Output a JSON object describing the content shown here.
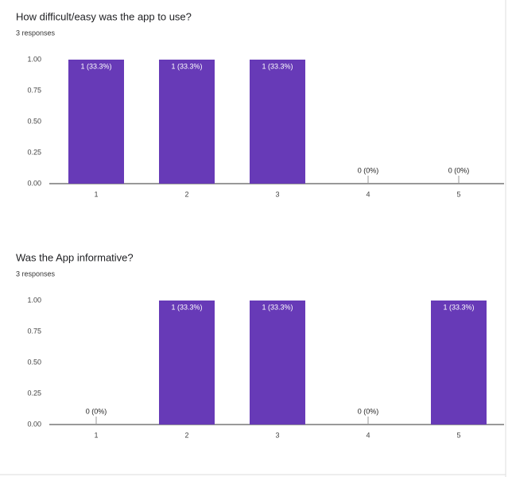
{
  "chart_data": [
    {
      "type": "bar",
      "title": "How difficult/easy was the app to use?",
      "subtitle": "3 responses",
      "categories": [
        "1",
        "2",
        "3",
        "4",
        "5"
      ],
      "values": [
        1,
        1,
        1,
        0,
        0
      ],
      "value_labels": [
        "1 (33.3%)",
        "1 (33.3%)",
        "1 (33.3%)",
        "0 (0%)",
        "0 (0%)"
      ],
      "color": "#673ab7",
      "ylim": [
        0,
        1
      ],
      "yticks": [
        {
          "value": 0,
          "label": "0.00"
        },
        {
          "value": 0.25,
          "label": "0.25"
        },
        {
          "value": 0.5,
          "label": "0.50"
        },
        {
          "value": 0.75,
          "label": "0.75"
        },
        {
          "value": 1,
          "label": "1.00"
        }
      ]
    },
    {
      "type": "bar",
      "title": "Was the App informative?",
      "subtitle": "3 responses",
      "categories": [
        "1",
        "2",
        "3",
        "4",
        "5"
      ],
      "values": [
        0,
        1,
        1,
        0,
        1
      ],
      "value_labels": [
        "0 (0%)",
        "1 (33.3%)",
        "1 (33.3%)",
        "0 (0%)",
        "1 (33.3%)"
      ],
      "color": "#673ab7",
      "ylim": [
        0,
        1
      ],
      "yticks": [
        {
          "value": 0,
          "label": "0.00"
        },
        {
          "value": 0.25,
          "label": "0.25"
        },
        {
          "value": 0.5,
          "label": "0.50"
        },
        {
          "value": 0.75,
          "label": "0.75"
        },
        {
          "value": 1,
          "label": "1.00"
        }
      ]
    }
  ]
}
